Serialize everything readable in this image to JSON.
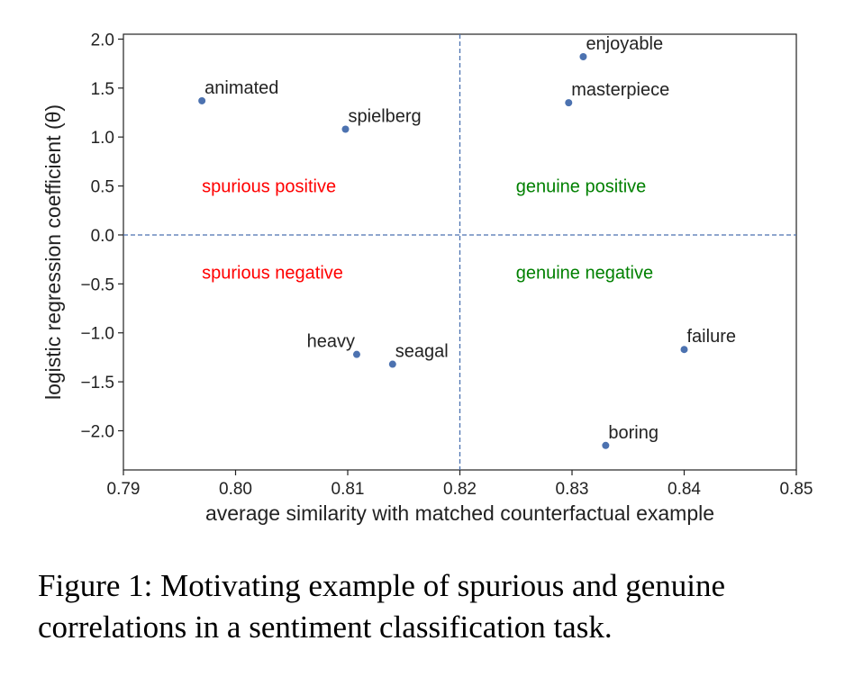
{
  "chart_data": {
    "type": "scatter",
    "xlabel": "average similarity with matched counterfactual example",
    "ylabel": "logistic regression coefficient (θ)",
    "xlim": [
      0.79,
      0.85
    ],
    "ylim": [
      -2.4,
      2.05
    ],
    "x_ticks": [
      "0.79",
      "0.80",
      "0.81",
      "0.82",
      "0.83",
      "0.84",
      "0.85"
    ],
    "x_tick_values": [
      0.79,
      0.8,
      0.81,
      0.82,
      0.83,
      0.84,
      0.85
    ],
    "y_ticks": [
      "2.0",
      "1.5",
      "1.0",
      "0.5",
      "0.0",
      "−0.5",
      "−1.0",
      "−1.5",
      "−2.0"
    ],
    "y_tick_values": [
      2.0,
      1.5,
      1.0,
      0.5,
      0.0,
      -0.5,
      -1.0,
      -1.5,
      -2.0
    ],
    "reference_lines": {
      "x": 0.82,
      "y": 0.0,
      "style": "dashed"
    },
    "point_color": "#4c72b0",
    "grid": false,
    "points": [
      {
        "label": "enjoyable",
        "x": 0.831,
        "y": 1.82,
        "anchor": "right"
      },
      {
        "label": "animated",
        "x": 0.797,
        "y": 1.37,
        "anchor": "right"
      },
      {
        "label": "masterpiece",
        "x": 0.8297,
        "y": 1.35,
        "anchor": "right"
      },
      {
        "label": "spielberg",
        "x": 0.8098,
        "y": 1.08,
        "anchor": "right"
      },
      {
        "label": "heavy",
        "x": 0.8108,
        "y": -1.22,
        "anchor": "left"
      },
      {
        "label": "seagal",
        "x": 0.814,
        "y": -1.32,
        "anchor": "right"
      },
      {
        "label": "failure",
        "x": 0.84,
        "y": -1.17,
        "anchor": "right"
      },
      {
        "label": "boring",
        "x": 0.833,
        "y": -2.15,
        "anchor": "right"
      }
    ],
    "regions": [
      {
        "label": "spurious positive",
        "x": 0.797,
        "y": 0.5,
        "color": "#ff0000"
      },
      {
        "label": "genuine positive",
        "x": 0.825,
        "y": 0.5,
        "color": "#008000"
      },
      {
        "label": "spurious negative",
        "x": 0.797,
        "y": -0.38,
        "color": "#ff0000"
      },
      {
        "label": "genuine negative",
        "x": 0.825,
        "y": -0.38,
        "color": "#008000"
      }
    ]
  },
  "caption": {
    "text": "Figure 1: Motivating example of spurious and genuine correlations in a sentiment classification task."
  }
}
